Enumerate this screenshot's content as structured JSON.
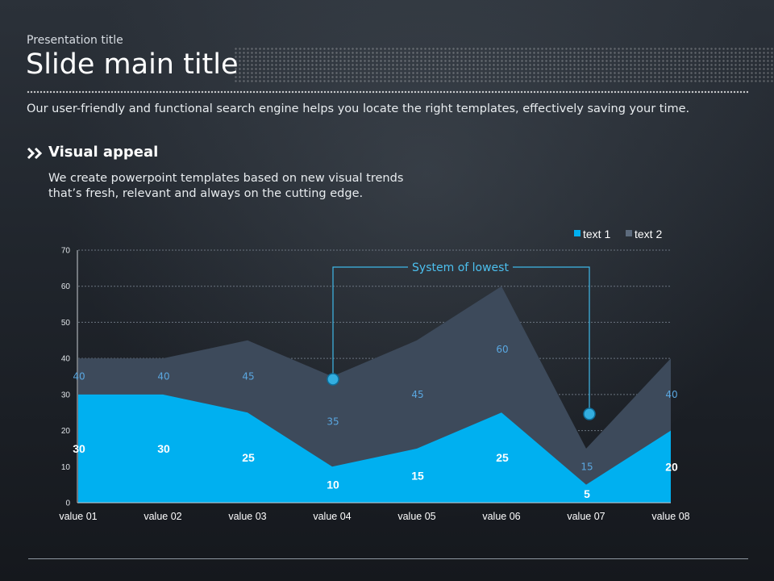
{
  "header": {
    "presentation_title": "Presentation title",
    "main_title": "Slide main title",
    "subtitle": "Our user-friendly and functional search engine helps you locate the right templates, effectively saving your time."
  },
  "section": {
    "icon": "double-chevron-right-icon",
    "heading": "Visual appeal",
    "body_lines": [
      "We create powerpoint templates based on new visual trends",
      "that’s fresh, relevant and always on the cutting edge."
    ]
  },
  "chart_data": {
    "type": "area",
    "categories": [
      "value 01",
      "value 02",
      "value 03",
      "value 04",
      "value 05",
      "value 06",
      "value 07",
      "value 08"
    ],
    "series": [
      {
        "name": "text 1",
        "values": [
          30,
          30,
          25,
          10,
          15,
          25,
          5,
          20
        ],
        "color": "#00b0f0"
      },
      {
        "name": "text 2",
        "values": [
          40,
          40,
          45,
          35,
          45,
          60,
          15,
          40
        ],
        "color": "#3d4a5b"
      }
    ],
    "ylim": [
      0,
      70
    ],
    "yticks": [
      0,
      10,
      20,
      30,
      40,
      50,
      60,
      70
    ],
    "grid": true,
    "legend": "top-right",
    "annotation": {
      "text": "System of lowest",
      "points": [
        "value 04",
        "value 07"
      ],
      "color": "#3fb8e8"
    }
  }
}
